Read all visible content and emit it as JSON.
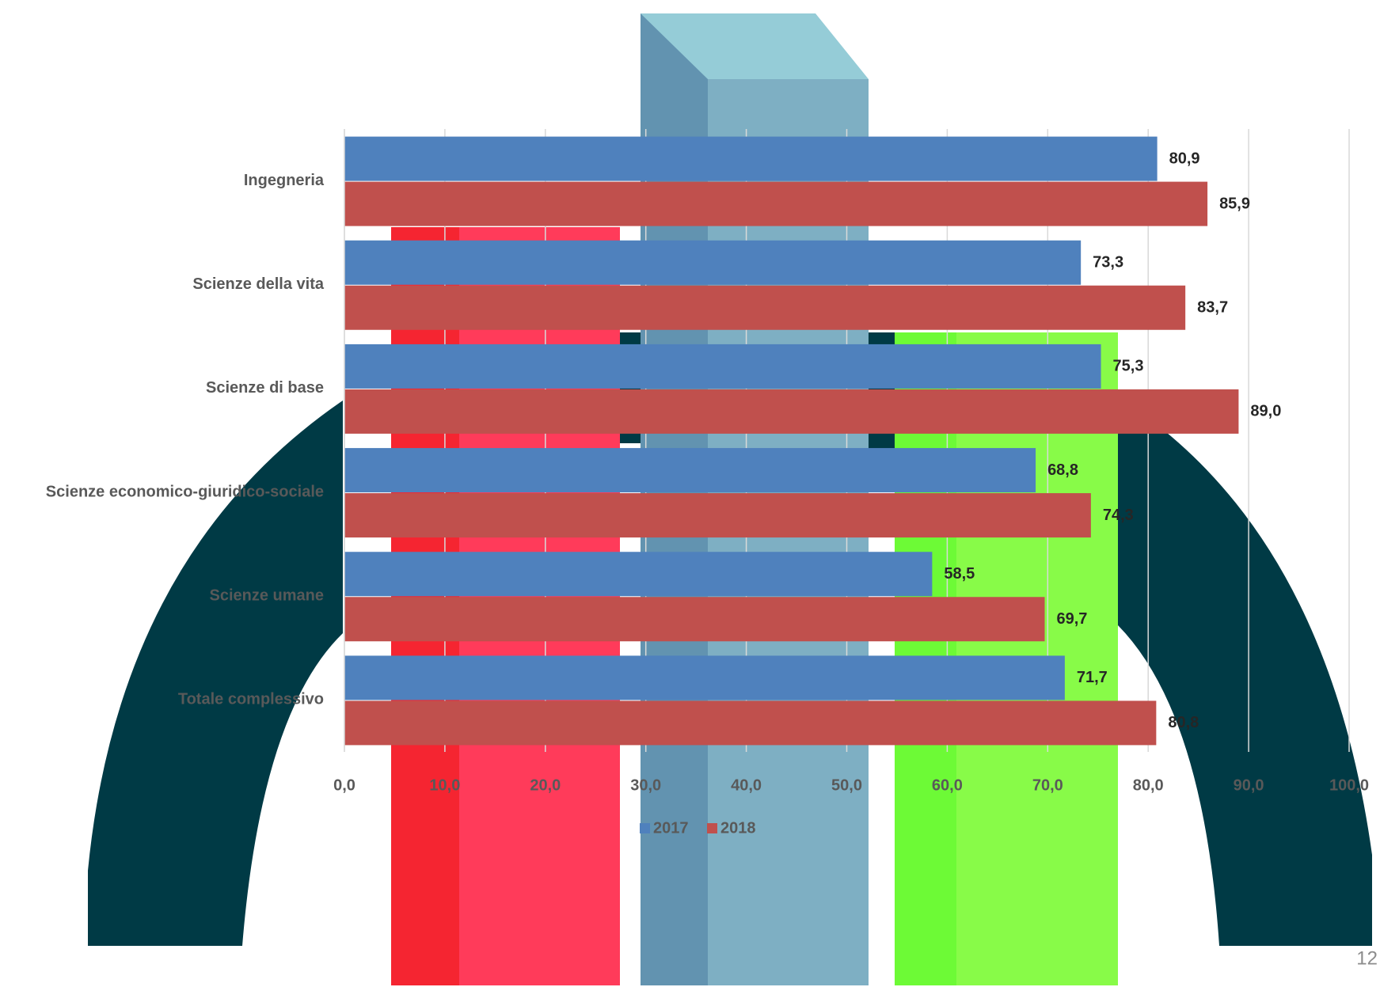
{
  "chart_data": {
    "type": "bar",
    "orientation": "horizontal",
    "categories": [
      "Ingegneria",
      "Scienze della vita",
      "Scienze di base",
      "Scienze economico-giuridico-sociale",
      "Scienze umane",
      "Totale complessivo"
    ],
    "series": [
      {
        "name": "2017",
        "color": "#4f81bd",
        "values": [
          80.9,
          73.3,
          75.3,
          68.8,
          58.5,
          71.7
        ],
        "value_labels": [
          "80,9",
          "73,3",
          "75,3",
          "68,8",
          "58,5",
          "71,7"
        ]
      },
      {
        "name": "2018",
        "color": "#c0504d",
        "values": [
          85.9,
          83.7,
          89.0,
          74.3,
          69.7,
          80.8
        ],
        "value_labels": [
          "85,9",
          "83,7",
          "89,0",
          "74,3",
          "69,7",
          "80,8"
        ]
      }
    ],
    "xlim": [
      0,
      100
    ],
    "xticks": [
      {
        "value": 0,
        "label": "0,0"
      },
      {
        "value": 10,
        "label": "10,0"
      },
      {
        "value": 20,
        "label": "20,0"
      },
      {
        "value": 30,
        "label": "30,0"
      },
      {
        "value": 40,
        "label": "40,0"
      },
      {
        "value": 50,
        "label": "50,0"
      },
      {
        "value": 60,
        "label": "60,0"
      },
      {
        "value": 70,
        "label": "70,0"
      },
      {
        "value": 80,
        "label": "80,0"
      },
      {
        "value": 90,
        "label": "90,0"
      },
      {
        "value": 100,
        "label": "100,0"
      }
    ],
    "grid": true,
    "legend": "bottom"
  },
  "page_number": "12"
}
